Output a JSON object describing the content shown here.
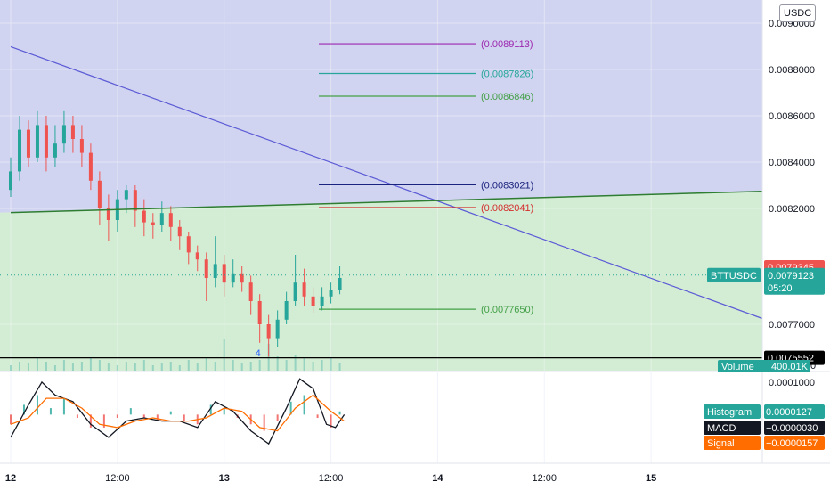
{
  "header": {
    "currency": "USDC"
  },
  "chart_data": {
    "type": "candlestick",
    "symbol": "BTTUSDC",
    "price_axis": {
      "min": 0.0075,
      "max": 0.0091,
      "ticks": [
        {
          "v": 0.009,
          "t": "0.0090000"
        },
        {
          "v": 0.0088,
          "t": "0.0088000"
        },
        {
          "v": 0.0086,
          "t": "0.0086000"
        },
        {
          "v": 0.0084,
          "t": "0.0084000"
        },
        {
          "v": 0.0082,
          "t": "0.0082000"
        },
        {
          "v": 0.0077,
          "t": "0.0077000"
        }
      ],
      "zero_label": "0"
    },
    "macd_axis": {
      "min": -0.00015,
      "max": 0.00013,
      "ticks": [
        {
          "v": 0.0001,
          "t": "0.0001000"
        }
      ]
    },
    "time_axis": {
      "start": "12",
      "step_hours": 4,
      "ticks": [
        {
          "label": "12",
          "h": 0
        },
        {
          "label": "12:00",
          "h": 12
        },
        {
          "label": "13",
          "h": 24
        },
        {
          "label": "12:00",
          "h": 36
        },
        {
          "label": "14",
          "h": 48
        },
        {
          "label": "12:00",
          "h": 60
        },
        {
          "label": "15",
          "h": 72
        }
      ],
      "hours_span": 84.5
    },
    "levels": [
      {
        "value": 0.0089113,
        "label": "(0.0089113)",
        "color": "#9c27b0"
      },
      {
        "value": 0.0087826,
        "label": "(0.0087826)",
        "color": "#26a69a"
      },
      {
        "value": 0.0086846,
        "label": "(0.0086846)",
        "color": "#43a047"
      },
      {
        "value": 0.0083021,
        "label": "(0.0083021)",
        "color": "#1a237e"
      },
      {
        "value": 0.0082041,
        "label": "(0.0082041)",
        "color": "#d32f2f"
      },
      {
        "value": 0.007765,
        "label": "(0.0077650)",
        "color": "#43a047"
      }
    ],
    "horizontal_line": {
      "value": 0.0075552,
      "label": "0.0075552"
    },
    "trendline_down": {
      "start_h": 0,
      "start_v": 0.0088985,
      "end_h": 84.5,
      "end_v": 0.007725,
      "color": "#5b5bd6"
    },
    "trendline_up": {
      "start_h": 0,
      "start_v": 0.008182,
      "end_h": 84.5,
      "end_v": 0.008274,
      "color": "#2e7d32"
    },
    "zones": {
      "upper": "#d1d4f0",
      "lower": "#d3ecd4"
    },
    "current": {
      "last_price_label": "0.0079345",
      "symbol_label": "BTTUSDC",
      "price_label": "0.0079123",
      "countdown": "05:20",
      "value": 0.0079123
    },
    "volume_label": {
      "name": "Volume",
      "value": "400.01K"
    },
    "indicators": {
      "histogram": {
        "name": "Histogram",
        "value": "0.0000127",
        "color": "#26a69a"
      },
      "macd": {
        "name": "MACD",
        "value": "−0.0000030",
        "color": "#131722"
      },
      "signal": {
        "name": "Signal",
        "value": "−0.0000157",
        "color": "#ff6d00"
      }
    },
    "annotation": "4",
    "colors": {
      "up": "#26a69a",
      "down": "#ef5350"
    },
    "ohlc": [
      {
        "h": 0.0,
        "o": 0.00828,
        "c": 0.00836,
        "hi": 0.00842,
        "lo": 0.00825
      },
      {
        "h": 1.0,
        "o": 0.00836,
        "c": 0.00854,
        "hi": 0.0086,
        "lo": 0.00832
      },
      {
        "h": 2.0,
        "o": 0.00854,
        "c": 0.00842,
        "hi": 0.00858,
        "lo": 0.00838
      },
      {
        "h": 3.0,
        "o": 0.00842,
        "c": 0.00856,
        "hi": 0.00862,
        "lo": 0.0084
      },
      {
        "h": 4.0,
        "o": 0.00856,
        "c": 0.00842,
        "hi": 0.0086,
        "lo": 0.00836
      },
      {
        "h": 5.0,
        "o": 0.00842,
        "c": 0.00848,
        "hi": 0.00856,
        "lo": 0.00838
      },
      {
        "h": 6.0,
        "o": 0.00848,
        "c": 0.00856,
        "hi": 0.00862,
        "lo": 0.00844
      },
      {
        "h": 7.0,
        "o": 0.00856,
        "c": 0.0085,
        "hi": 0.0086,
        "lo": 0.00844
      },
      {
        "h": 8.0,
        "o": 0.0085,
        "c": 0.00844,
        "hi": 0.00856,
        "lo": 0.00838
      },
      {
        "h": 9.0,
        "o": 0.00844,
        "c": 0.00832,
        "hi": 0.00848,
        "lo": 0.00828
      },
      {
        "h": 10.0,
        "o": 0.00832,
        "c": 0.0082,
        "hi": 0.00836,
        "lo": 0.00813
      },
      {
        "h": 11.0,
        "o": 0.0082,
        "c": 0.00815,
        "hi": 0.00826,
        "lo": 0.00806
      },
      {
        "h": 12.0,
        "o": 0.00815,
        "c": 0.00824,
        "hi": 0.00828,
        "lo": 0.0081
      },
      {
        "h": 13.0,
        "o": 0.00824,
        "c": 0.00828,
        "hi": 0.0083,
        "lo": 0.00818
      },
      {
        "h": 14.0,
        "o": 0.00828,
        "c": 0.00819,
        "hi": 0.0083,
        "lo": 0.00812
      },
      {
        "h": 15.0,
        "o": 0.00819,
        "c": 0.00814,
        "hi": 0.00824,
        "lo": 0.00808
      },
      {
        "h": 16.0,
        "o": 0.00814,
        "c": 0.00813,
        "hi": 0.00818,
        "lo": 0.00807
      },
      {
        "h": 17.0,
        "o": 0.00813,
        "c": 0.00818,
        "hi": 0.00823,
        "lo": 0.0081
      },
      {
        "h": 18.0,
        "o": 0.00818,
        "c": 0.00812,
        "hi": 0.00821,
        "lo": 0.00806
      },
      {
        "h": 19.0,
        "o": 0.00812,
        "c": 0.00808,
        "hi": 0.00815,
        "lo": 0.00802
      },
      {
        "h": 20.0,
        "o": 0.00808,
        "c": 0.00801,
        "hi": 0.0081,
        "lo": 0.00796
      },
      {
        "h": 21.0,
        "o": 0.00801,
        "c": 0.00798,
        "hi": 0.00804,
        "lo": 0.00793
      },
      {
        "h": 22.0,
        "o": 0.00798,
        "c": 0.0079,
        "hi": 0.00801,
        "lo": 0.0078
      },
      {
        "h": 23.0,
        "o": 0.0079,
        "c": 0.00796,
        "hi": 0.00808,
        "lo": 0.00786
      },
      {
        "h": 24.0,
        "o": 0.00796,
        "c": 0.00788,
        "hi": 0.008,
        "lo": 0.00782
      },
      {
        "h": 25.0,
        "o": 0.00788,
        "c": 0.00792,
        "hi": 0.00798,
        "lo": 0.00786
      },
      {
        "h": 26.0,
        "o": 0.00792,
        "c": 0.00788,
        "hi": 0.00795,
        "lo": 0.00784
      },
      {
        "h": 27.0,
        "o": 0.00788,
        "c": 0.0078,
        "hi": 0.00791,
        "lo": 0.00774
      },
      {
        "h": 28.0,
        "o": 0.0078,
        "c": 0.0077,
        "hi": 0.00783,
        "lo": 0.00762
      },
      {
        "h": 29.0,
        "o": 0.0077,
        "c": 0.00764,
        "hi": 0.00774,
        "lo": 0.00756
      },
      {
        "h": 30.0,
        "o": 0.00764,
        "c": 0.00772,
        "hi": 0.00776,
        "lo": 0.0076
      },
      {
        "h": 31.0,
        "o": 0.00772,
        "c": 0.0078,
        "hi": 0.00784,
        "lo": 0.0077
      },
      {
        "h": 32.0,
        "o": 0.0078,
        "c": 0.00788,
        "hi": 0.008,
        "lo": 0.00778
      },
      {
        "h": 33.0,
        "o": 0.00788,
        "c": 0.00782,
        "hi": 0.00794,
        "lo": 0.00778
      },
      {
        "h": 34.0,
        "o": 0.00782,
        "c": 0.00778,
        "hi": 0.00786,
        "lo": 0.00775
      },
      {
        "h": 35.0,
        "o": 0.00778,
        "c": 0.00782,
        "hi": 0.00786,
        "lo": 0.00776
      },
      {
        "h": 36.0,
        "o": 0.00782,
        "c": 0.00785,
        "hi": 0.00788,
        "lo": 0.00779
      },
      {
        "h": 37.0,
        "o": 0.00785,
        "c": 0.0079,
        "hi": 0.00795,
        "lo": 0.00783
      }
    ],
    "macd_histogram": [
      {
        "h": 0.0,
        "v": -3e-05
      },
      {
        "h": 1.5,
        "v": 3e-05
      },
      {
        "h": 3.0,
        "v": 6e-05
      },
      {
        "h": 4.5,
        "v": 2e-05
      },
      {
        "h": 6.0,
        "v": 5e-05
      },
      {
        "h": 7.5,
        "v": -1e-05
      },
      {
        "h": 9.0,
        "v": -4e-05
      },
      {
        "h": 10.5,
        "v": -4e-05
      },
      {
        "h": 12.0,
        "v": -1e-05
      },
      {
        "h": 13.5,
        "v": 2e-05
      },
      {
        "h": 15.0,
        "v": -1e-05
      },
      {
        "h": 16.5,
        "v": -2e-05
      },
      {
        "h": 18.0,
        "v": 1e-05
      },
      {
        "h": 19.5,
        "v": -2e-05
      },
      {
        "h": 21.0,
        "v": -3e-05
      },
      {
        "h": 22.5,
        "v": 3e-05
      },
      {
        "h": 24.0,
        "v": 2e-05
      },
      {
        "h": 25.5,
        "v": -1e-05
      },
      {
        "h": 27.0,
        "v": -3e-05
      },
      {
        "h": 28.5,
        "v": -5e-05
      },
      {
        "h": 30.0,
        "v": -2e-05
      },
      {
        "h": 31.5,
        "v": 4e-05
      },
      {
        "h": 33.0,
        "v": 6e-05
      },
      {
        "h": 34.5,
        "v": -1e-05
      },
      {
        "h": 36.0,
        "v": -4e-05
      },
      {
        "h": 37.0,
        "v": 1e-05
      }
    ],
    "macd_line": [
      {
        "h": 0.0,
        "v": -7e-05
      },
      {
        "h": 2.0,
        "v": 3e-05
      },
      {
        "h": 3.5,
        "v": 0.0001
      },
      {
        "h": 5.0,
        "v": 6e-05
      },
      {
        "h": 7.0,
        "v": 4e-05
      },
      {
        "h": 9.0,
        "v": -3e-05
      },
      {
        "h": 11.0,
        "v": -7e-05
      },
      {
        "h": 13.0,
        "v": -2e-05
      },
      {
        "h": 15.0,
        "v": -1e-05
      },
      {
        "h": 17.0,
        "v": -2e-05
      },
      {
        "h": 19.0,
        "v": -2e-05
      },
      {
        "h": 21.0,
        "v": -4e-05
      },
      {
        "h": 23.0,
        "v": 4e-05
      },
      {
        "h": 25.0,
        "v": 1e-05
      },
      {
        "h": 27.0,
        "v": -5e-05
      },
      {
        "h": 29.0,
        "v": -9e-05
      },
      {
        "h": 31.0,
        "v": 2e-05
      },
      {
        "h": 32.5,
        "v": 0.00011
      },
      {
        "h": 34.0,
        "v": 8e-05
      },
      {
        "h": 35.5,
        "v": -3e-05
      },
      {
        "h": 36.5,
        "v": -4e-05
      },
      {
        "h": 37.5,
        "v": -0.0
      }
    ],
    "signal_line": [
      {
        "h": 0.0,
        "v": -3e-05
      },
      {
        "h": 2.0,
        "v": -1e-05
      },
      {
        "h": 4.0,
        "v": 5e-05
      },
      {
        "h": 6.0,
        "v": 5e-05
      },
      {
        "h": 8.0,
        "v": 2e-05
      },
      {
        "h": 10.0,
        "v": -3e-05
      },
      {
        "h": 12.0,
        "v": -4e-05
      },
      {
        "h": 14.0,
        "v": -2e-05
      },
      {
        "h": 16.0,
        "v": -1e-05
      },
      {
        "h": 18.0,
        "v": -2e-05
      },
      {
        "h": 20.0,
        "v": -2e-05
      },
      {
        "h": 22.0,
        "v": -1e-05
      },
      {
        "h": 24.0,
        "v": 2e-05
      },
      {
        "h": 26.0,
        "v": 1e-05
      },
      {
        "h": 28.0,
        "v": -4e-05
      },
      {
        "h": 30.0,
        "v": -5e-05
      },
      {
        "h": 32.0,
        "v": 2e-05
      },
      {
        "h": 34.0,
        "v": 6e-05
      },
      {
        "h": 36.0,
        "v": 1e-05
      },
      {
        "h": 37.5,
        "v": -2e-05
      }
    ],
    "volume": [
      {
        "h": 0,
        "v": 0.3
      },
      {
        "h": 1,
        "v": 0.5
      },
      {
        "h": 2,
        "v": 0.4
      },
      {
        "h": 3,
        "v": 0.7
      },
      {
        "h": 4,
        "v": 0.5
      },
      {
        "h": 5,
        "v": 0.3
      },
      {
        "h": 6,
        "v": 0.6
      },
      {
        "h": 7,
        "v": 0.4
      },
      {
        "h": 8,
        "v": 0.5
      },
      {
        "h": 9,
        "v": 0.7
      },
      {
        "h": 10,
        "v": 0.6
      },
      {
        "h": 11,
        "v": 0.4
      },
      {
        "h": 12,
        "v": 0.3
      },
      {
        "h": 13,
        "v": 0.5
      },
      {
        "h": 14,
        "v": 0.4
      },
      {
        "h": 15,
        "v": 0.6
      },
      {
        "h": 16,
        "v": 0.3
      },
      {
        "h": 17,
        "v": 0.4
      },
      {
        "h": 18,
        "v": 0.5
      },
      {
        "h": 19,
        "v": 0.3
      },
      {
        "h": 20,
        "v": 0.6
      },
      {
        "h": 21,
        "v": 0.4
      },
      {
        "h": 22,
        "v": 0.7
      },
      {
        "h": 23,
        "v": 0.5
      },
      {
        "h": 24,
        "v": 1.8
      },
      {
        "h": 25,
        "v": 0.6
      },
      {
        "h": 26,
        "v": 0.4
      },
      {
        "h": 27,
        "v": 0.5
      },
      {
        "h": 28,
        "v": 0.6
      },
      {
        "h": 29,
        "v": 1.5
      },
      {
        "h": 30,
        "v": 0.8
      },
      {
        "h": 31,
        "v": 0.6
      },
      {
        "h": 32,
        "v": 0.9
      },
      {
        "h": 33,
        "v": 0.7
      },
      {
        "h": 34,
        "v": 0.5
      },
      {
        "h": 35,
        "v": 0.6
      },
      {
        "h": 36,
        "v": 0.7
      },
      {
        "h": 37,
        "v": 0.4
      }
    ]
  }
}
